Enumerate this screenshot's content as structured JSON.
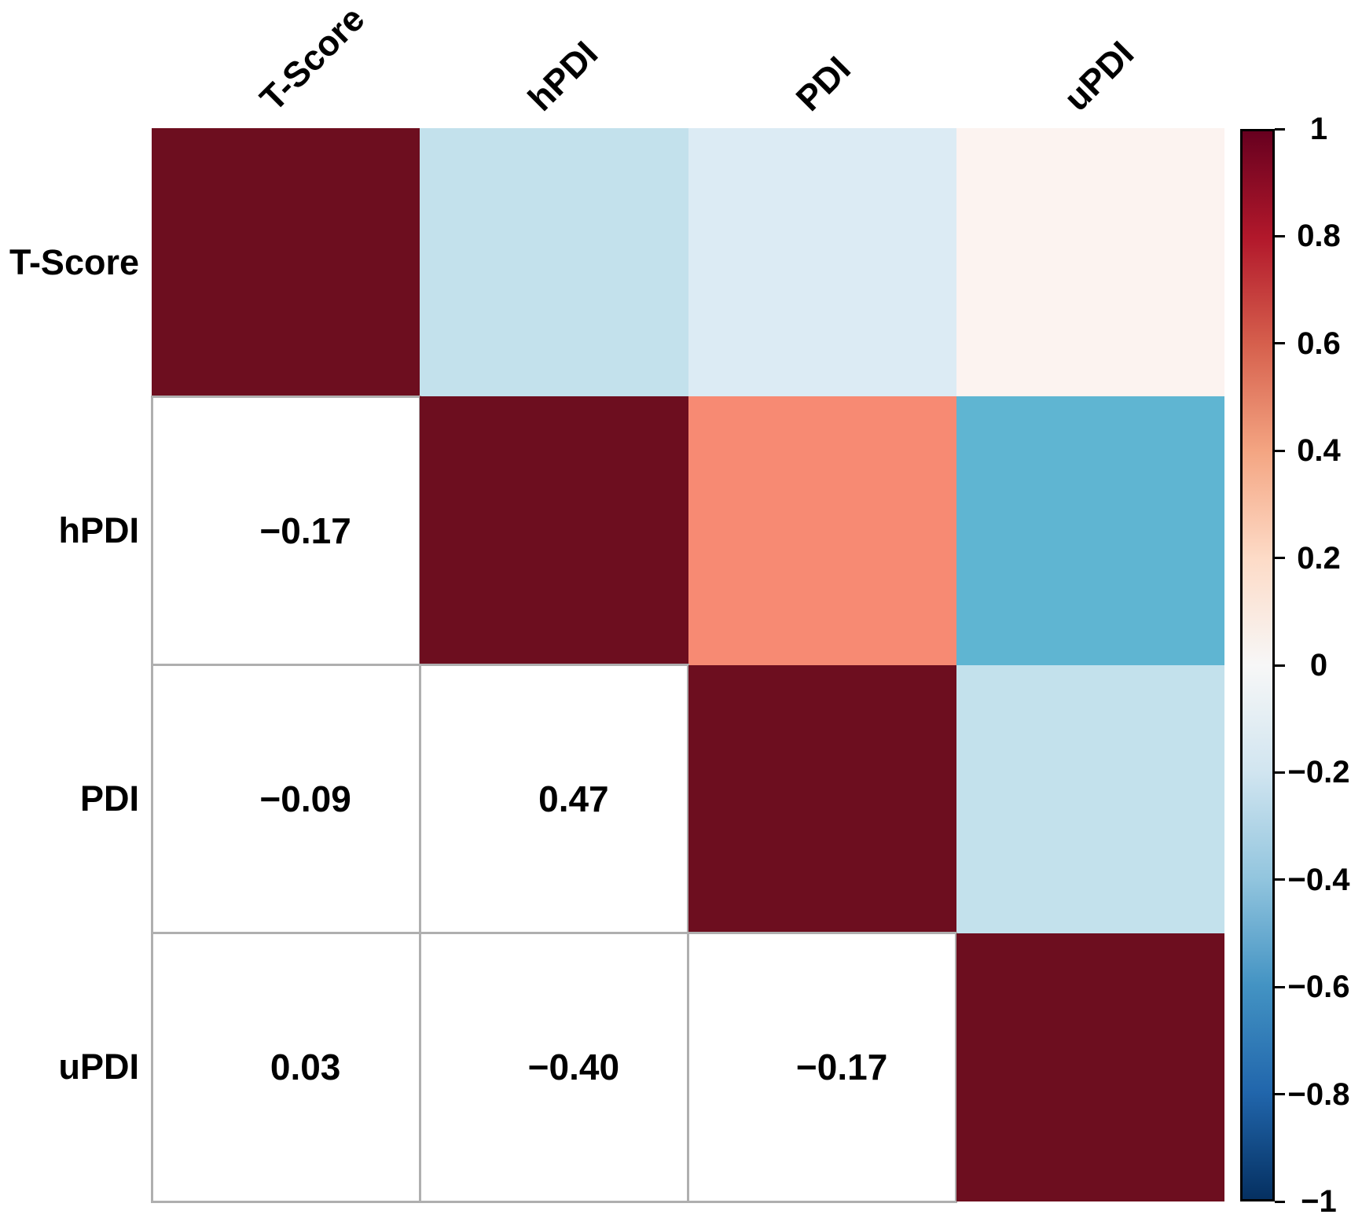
{
  "chart_data": {
    "type": "heatmap",
    "subtype": "correlation-matrix",
    "title": "",
    "variables": [
      "T-Score",
      "hPDI",
      "PDI",
      "uPDI"
    ],
    "matrix": [
      [
        1,
        -0.17,
        -0.09,
        0.03
      ],
      [
        -0.17,
        1,
        0.47,
        -0.4
      ],
      [
        -0.09,
        0.47,
        1,
        -0.17
      ],
      [
        0.03,
        -0.4,
        -0.17,
        1
      ]
    ],
    "upper_cells": [
      {
        "row": 0,
        "col": 1,
        "value": -0.17,
        "color": "#C3E1EC"
      },
      {
        "row": 0,
        "col": 2,
        "value": -0.09,
        "color": "#DCEBF4"
      },
      {
        "row": 0,
        "col": 3,
        "value": 0.03,
        "color": "#FCF3F0"
      },
      {
        "row": 1,
        "col": 2,
        "value": 0.47,
        "color": "#F78A73"
      },
      {
        "row": 1,
        "col": 3,
        "value": -0.4,
        "color": "#5FB5D2"
      },
      {
        "row": 2,
        "col": 3,
        "value": -0.17,
        "color": "#C3E1EC"
      }
    ],
    "lower_cells": [
      {
        "row": 1,
        "col": 0,
        "text": "−0.17"
      },
      {
        "row": 2,
        "col": 0,
        "text": "−0.09"
      },
      {
        "row": 2,
        "col": 1,
        "text": "0.47"
      },
      {
        "row": 3,
        "col": 0,
        "text": "0.03"
      },
      {
        "row": 3,
        "col": 1,
        "text": "−0.40"
      },
      {
        "row": 3,
        "col": 2,
        "text": "−0.17"
      }
    ],
    "colors": {
      "diagonal": "#6D0E1F",
      "lower_cell_background": "#FFFFFF",
      "grid_line": "#AFAFAF",
      "text": "#000000",
      "colorbar_border": "#000000"
    },
    "colorbar": {
      "min": -1,
      "max": 1,
      "ticks": [
        "1",
        "0.8",
        "0.6",
        "0.4",
        "0.2",
        "0",
        "−0.2",
        "−0.4",
        "−0.6",
        "−0.8",
        "−1"
      ],
      "legend_position": "right",
      "gradient_stops_top_to_bottom": [
        "#67001F",
        "#B2182B",
        "#D6604D",
        "#F4A582",
        "#FDDBC7",
        "#F7F7F7",
        "#D1E5F0",
        "#92C5DE",
        "#4393C3",
        "#2166AC",
        "#053061"
      ]
    },
    "layout": {
      "grid_on": false,
      "upper_triangle": "color",
      "lower_triangle": "number",
      "diagonal": "color"
    }
  }
}
